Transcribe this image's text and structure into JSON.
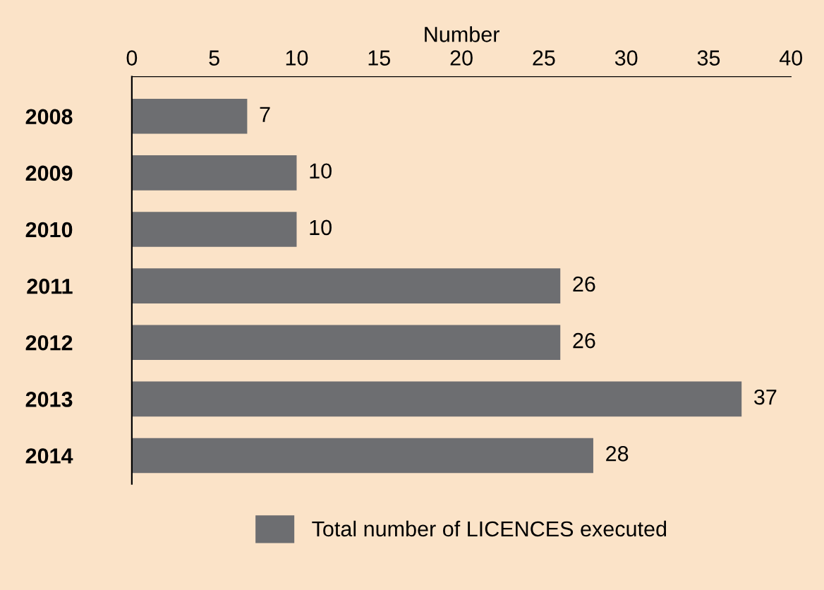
{
  "chart_data": {
    "type": "bar",
    "orientation": "horizontal",
    "xlabel": "Number",
    "categories": [
      "2008",
      "2009",
      "2010",
      "2011",
      "2012",
      "2013",
      "2014"
    ],
    "series": [
      {
        "name": "Total number of LICENCES executed",
        "color": "#6d6e71",
        "values": [
          7,
          10,
          10,
          26,
          26,
          37,
          28
        ]
      }
    ],
    "xlim": [
      0,
      40
    ],
    "xticks": [
      0,
      5,
      10,
      15,
      20,
      25,
      30,
      35,
      40
    ],
    "data_labels": true,
    "grid": false,
    "legend": "bottom"
  }
}
